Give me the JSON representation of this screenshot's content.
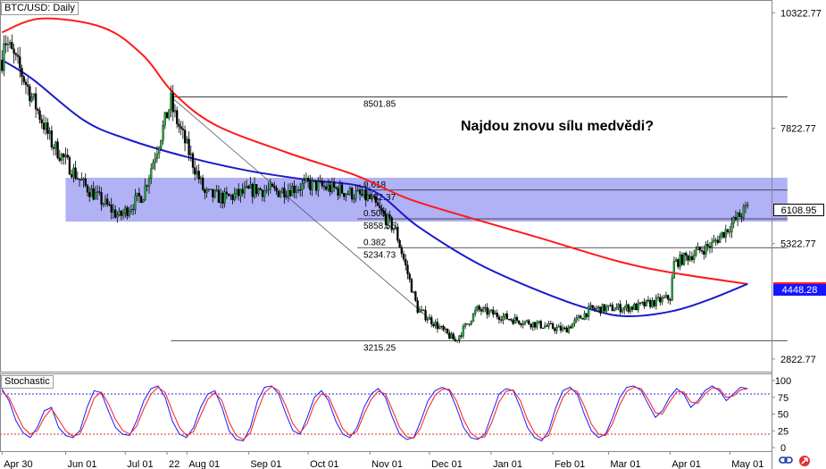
{
  "chart_data": [
    {
      "type": "candlestick",
      "title": "BTC/USD: Daily",
      "annotation": "Najdou znovu sílu medvědi?",
      "x_ticks": [
        "Apr 30",
        "Jun 01",
        "Jul 01",
        "22",
        "Aug 01",
        "Sep 01",
        "Oct 01",
        "Nov 01",
        "Dec 01",
        "Jan 01",
        "Feb 01",
        "Mar 01",
        "Apr 01",
        "May 01"
      ],
      "y_ticks": [
        "10322.77",
        "7822.77",
        "5322.77",
        "2822.77"
      ],
      "last_price": "6108.95",
      "ma_value": "4448.28",
      "ohlc_anchors": [
        {
          "date": "2018-04-30",
          "close": 9300
        },
        {
          "date": "2018-05-01",
          "close": 9800
        },
        {
          "date": "2018-05-10",
          "close": 9000
        },
        {
          "date": "2018-05-25",
          "close": 7500
        },
        {
          "date": "2018-06-10",
          "close": 6600
        },
        {
          "date": "2018-06-28",
          "close": 5900
        },
        {
          "date": "2018-07-10",
          "close": 6400
        },
        {
          "date": "2018-07-24",
          "close": 8400
        },
        {
          "date": "2018-07-25",
          "close": 8200
        },
        {
          "date": "2018-08-10",
          "close": 6400
        },
        {
          "date": "2018-08-20",
          "close": 6300
        },
        {
          "date": "2018-09-05",
          "close": 6500
        },
        {
          "date": "2018-09-15",
          "close": 6450
        },
        {
          "date": "2018-10-01",
          "close": 6600
        },
        {
          "date": "2018-10-15",
          "close": 6500
        },
        {
          "date": "2018-11-01",
          "close": 6300
        },
        {
          "date": "2018-11-14",
          "close": 5600
        },
        {
          "date": "2018-11-25",
          "close": 3900
        },
        {
          "date": "2018-12-14",
          "close": 3215
        },
        {
          "date": "2018-12-25",
          "close": 3900
        },
        {
          "date": "2019-01-10",
          "close": 3700
        },
        {
          "date": "2019-02-07",
          "close": 3450
        },
        {
          "date": "2019-02-20",
          "close": 3900
        },
        {
          "date": "2019-03-15",
          "close": 3950
        },
        {
          "date": "2019-04-01",
          "close": 4150
        },
        {
          "date": "2019-04-03",
          "close": 4900
        },
        {
          "date": "2019-04-22",
          "close": 5300
        },
        {
          "date": "2019-05-10",
          "close": 6109
        }
      ],
      "moving_averages": [
        {
          "color": "#ff1a1a",
          "points": [
            {
              "date": "2018-04-30",
              "value": 9900
            },
            {
              "date": "2018-05-20",
              "value": 10200
            },
            {
              "date": "2018-06-20",
              "value": 10000
            },
            {
              "date": "2018-07-10",
              "value": 9400
            },
            {
              "date": "2018-07-25",
              "value": 8600
            },
            {
              "date": "2018-08-15",
              "value": 7900
            },
            {
              "date": "2018-09-20",
              "value": 7300
            },
            {
              "date": "2018-10-25",
              "value": 6800
            },
            {
              "date": "2018-11-20",
              "value": 6300
            },
            {
              "date": "2018-12-20",
              "value": 5900
            },
            {
              "date": "2019-01-25",
              "value": 5450
            },
            {
              "date": "2019-03-05",
              "value": 4950
            },
            {
              "date": "2019-04-01",
              "value": 4700
            },
            {
              "date": "2019-05-10",
              "value": 4448
            }
          ]
        },
        {
          "color": "#1a1acc",
          "points": [
            {
              "date": "2018-04-30",
              "value": 9300
            },
            {
              "date": "2018-05-15",
              "value": 8900
            },
            {
              "date": "2018-06-10",
              "value": 8000
            },
            {
              "date": "2018-07-01",
              "value": 7600
            },
            {
              "date": "2018-08-01",
              "value": 7200
            },
            {
              "date": "2018-09-01",
              "value": 6900
            },
            {
              "date": "2018-10-01",
              "value": 6700
            },
            {
              "date": "2018-11-01",
              "value": 6500
            },
            {
              "date": "2018-11-25",
              "value": 5700
            },
            {
              "date": "2018-12-25",
              "value": 4900
            },
            {
              "date": "2019-01-25",
              "value": 4300
            },
            {
              "date": "2019-02-20",
              "value": 3900
            },
            {
              "date": "2019-03-10",
              "value": 3750
            },
            {
              "date": "2019-04-01",
              "value": 3850
            },
            {
              "date": "2019-04-20",
              "value": 4100
            },
            {
              "date": "2019-05-10",
              "value": 4450
            }
          ]
        }
      ],
      "zone": {
        "from": 5800,
        "to": 6750,
        "color": "#8c8cf0",
        "start": "2018-06-01",
        "end": "2019-05-30"
      },
      "fibonacci": [
        {
          "ratio": "0.618",
          "value": "6482.37"
        },
        {
          "ratio": "0.500",
          "value": "5858.55"
        },
        {
          "ratio": "0.382",
          "value": "5234.73"
        }
      ],
      "fib_range": {
        "high": "8501.85",
        "low": "3215.25",
        "start": "2018-07-24",
        "end": "2019-05-30"
      }
    },
    {
      "type": "line",
      "title": "Stochastic",
      "y_ticks": [
        "100",
        "75",
        "50",
        "25",
        "0"
      ],
      "levels": [
        80,
        20
      ],
      "series": [
        {
          "color": "#1a1aff",
          "values": [
            88,
            70,
            40,
            22,
            15,
            30,
            55,
            60,
            30,
            18,
            15,
            25,
            60,
            85,
            82,
            55,
            30,
            20,
            18,
            40,
            70,
            88,
            92,
            75,
            40,
            20,
            15,
            30,
            60,
            80,
            85,
            60,
            25,
            12,
            10,
            30,
            70,
            90,
            92,
            80,
            50,
            25,
            20,
            45,
            75,
            85,
            70,
            40,
            20,
            15,
            30,
            60,
            80,
            88,
            75,
            45,
            20,
            12,
            15,
            40,
            70,
            85,
            90,
            85,
            60,
            30,
            15,
            12,
            20,
            50,
            80,
            88,
            85,
            60,
            30,
            15,
            10,
            25,
            60,
            85,
            90,
            80,
            50,
            25,
            15,
            20,
            45,
            75,
            90,
            92,
            85,
            65,
            45,
            55,
            75,
            88,
            80,
            60,
            70,
            85,
            92,
            85,
            70,
            80,
            90,
            88
          ]
        },
        {
          "color": "#ff1a1a",
          "values": [
            84,
            75,
            52,
            30,
            20,
            25,
            45,
            58,
            42,
            25,
            17,
            20,
            45,
            74,
            83,
            66,
            42,
            26,
            20,
            32,
            58,
            80,
            90,
            82,
            55,
            30,
            18,
            24,
            48,
            72,
            82,
            70,
            38,
            18,
            12,
            22,
            55,
            82,
            91,
            85,
            62,
            35,
            22,
            36,
            65,
            80,
            76,
            52,
            28,
            18,
            24,
            50,
            72,
            84,
            80,
            56,
            30,
            16,
            14,
            30,
            58,
            78,
            87,
            87,
            70,
            42,
            22,
            14,
            16,
            38,
            68,
            84,
            86,
            70,
            42,
            22,
            13,
            18,
            48,
            75,
            87,
            84,
            62,
            35,
            20,
            18,
            36,
            64,
            84,
            90,
            88,
            72,
            52,
            50,
            68,
            83,
            83,
            68,
            66,
            80,
            89,
            88,
            75,
            77,
            86,
            88
          ]
        }
      ]
    }
  ]
}
